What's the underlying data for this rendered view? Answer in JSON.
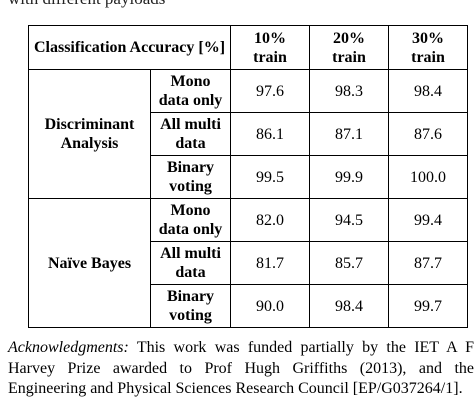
{
  "caption_fragment": "with different payloads",
  "table": {
    "header": {
      "title": "Classification Accuracy [%]",
      "columns": [
        {
          "line1": "10%",
          "line2": "train"
        },
        {
          "line1": "20%",
          "line2": "train"
        },
        {
          "line1": "30%",
          "line2": "train"
        }
      ]
    },
    "groups": [
      {
        "method_line1": "Discriminant",
        "method_line2": "Analysis",
        "rows": [
          {
            "line1": "Mono",
            "line2": "data only",
            "values": [
              "97.6",
              "98.3",
              "98.4"
            ]
          },
          {
            "line1": "All multi",
            "line2": "data",
            "values": [
              "86.1",
              "87.1",
              "87.6"
            ]
          },
          {
            "line1": "Binary",
            "line2": "voting",
            "values": [
              "99.5",
              "99.9",
              "100.0"
            ]
          }
        ]
      },
      {
        "method_line1": "Naïve Bayes",
        "method_line2": "",
        "rows": [
          {
            "line1": "Mono",
            "line2": "data only",
            "values": [
              "82.0",
              "94.5",
              "99.4"
            ]
          },
          {
            "line1": "All multi",
            "line2": "data",
            "values": [
              "81.7",
              "85.7",
              "87.7"
            ]
          },
          {
            "line1": "Binary",
            "line2": "voting",
            "values": [
              "90.0",
              "98.4",
              "99.7"
            ]
          }
        ]
      }
    ]
  },
  "acknowledgments": {
    "label": "Acknowledgments:",
    "text": " This work was funded partially by the IET A F Harvey Prize awarded to Prof Hugh Griffiths (2013), and the Engineering and Physical Sciences Research Council [EP/G037264/1]."
  }
}
